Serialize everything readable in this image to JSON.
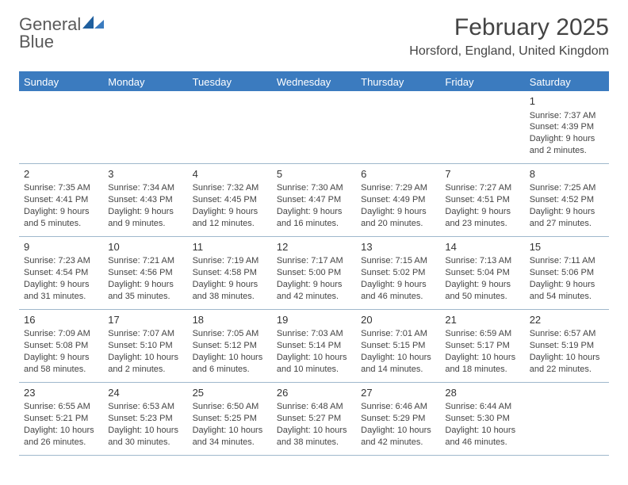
{
  "logo": {
    "word1": "General",
    "word2": "Blue"
  },
  "title": "February 2025",
  "location": "Horsford, England, United Kingdom",
  "colors": {
    "header_bg": "#3b7bbf",
    "divider": "#9fb8cc",
    "text": "#444444",
    "logo_gray": "#5a5a5a",
    "logo_blue": "#3b7bbf",
    "background": "#ffffff"
  },
  "day_headers": [
    "Sunday",
    "Monday",
    "Tuesday",
    "Wednesday",
    "Thursday",
    "Friday",
    "Saturday"
  ],
  "weeks": [
    [
      null,
      null,
      null,
      null,
      null,
      null,
      {
        "n": "1",
        "sr": "Sunrise: 7:37 AM",
        "ss": "Sunset: 4:39 PM",
        "dl": "Daylight: 9 hours and 2 minutes."
      }
    ],
    [
      {
        "n": "2",
        "sr": "Sunrise: 7:35 AM",
        "ss": "Sunset: 4:41 PM",
        "dl": "Daylight: 9 hours and 5 minutes."
      },
      {
        "n": "3",
        "sr": "Sunrise: 7:34 AM",
        "ss": "Sunset: 4:43 PM",
        "dl": "Daylight: 9 hours and 9 minutes."
      },
      {
        "n": "4",
        "sr": "Sunrise: 7:32 AM",
        "ss": "Sunset: 4:45 PM",
        "dl": "Daylight: 9 hours and 12 minutes."
      },
      {
        "n": "5",
        "sr": "Sunrise: 7:30 AM",
        "ss": "Sunset: 4:47 PM",
        "dl": "Daylight: 9 hours and 16 minutes."
      },
      {
        "n": "6",
        "sr": "Sunrise: 7:29 AM",
        "ss": "Sunset: 4:49 PM",
        "dl": "Daylight: 9 hours and 20 minutes."
      },
      {
        "n": "7",
        "sr": "Sunrise: 7:27 AM",
        "ss": "Sunset: 4:51 PM",
        "dl": "Daylight: 9 hours and 23 minutes."
      },
      {
        "n": "8",
        "sr": "Sunrise: 7:25 AM",
        "ss": "Sunset: 4:52 PM",
        "dl": "Daylight: 9 hours and 27 minutes."
      }
    ],
    [
      {
        "n": "9",
        "sr": "Sunrise: 7:23 AM",
        "ss": "Sunset: 4:54 PM",
        "dl": "Daylight: 9 hours and 31 minutes."
      },
      {
        "n": "10",
        "sr": "Sunrise: 7:21 AM",
        "ss": "Sunset: 4:56 PM",
        "dl": "Daylight: 9 hours and 35 minutes."
      },
      {
        "n": "11",
        "sr": "Sunrise: 7:19 AM",
        "ss": "Sunset: 4:58 PM",
        "dl": "Daylight: 9 hours and 38 minutes."
      },
      {
        "n": "12",
        "sr": "Sunrise: 7:17 AM",
        "ss": "Sunset: 5:00 PM",
        "dl": "Daylight: 9 hours and 42 minutes."
      },
      {
        "n": "13",
        "sr": "Sunrise: 7:15 AM",
        "ss": "Sunset: 5:02 PM",
        "dl": "Daylight: 9 hours and 46 minutes."
      },
      {
        "n": "14",
        "sr": "Sunrise: 7:13 AM",
        "ss": "Sunset: 5:04 PM",
        "dl": "Daylight: 9 hours and 50 minutes."
      },
      {
        "n": "15",
        "sr": "Sunrise: 7:11 AM",
        "ss": "Sunset: 5:06 PM",
        "dl": "Daylight: 9 hours and 54 minutes."
      }
    ],
    [
      {
        "n": "16",
        "sr": "Sunrise: 7:09 AM",
        "ss": "Sunset: 5:08 PM",
        "dl": "Daylight: 9 hours and 58 minutes."
      },
      {
        "n": "17",
        "sr": "Sunrise: 7:07 AM",
        "ss": "Sunset: 5:10 PM",
        "dl": "Daylight: 10 hours and 2 minutes."
      },
      {
        "n": "18",
        "sr": "Sunrise: 7:05 AM",
        "ss": "Sunset: 5:12 PM",
        "dl": "Daylight: 10 hours and 6 minutes."
      },
      {
        "n": "19",
        "sr": "Sunrise: 7:03 AM",
        "ss": "Sunset: 5:14 PM",
        "dl": "Daylight: 10 hours and 10 minutes."
      },
      {
        "n": "20",
        "sr": "Sunrise: 7:01 AM",
        "ss": "Sunset: 5:15 PM",
        "dl": "Daylight: 10 hours and 14 minutes."
      },
      {
        "n": "21",
        "sr": "Sunrise: 6:59 AM",
        "ss": "Sunset: 5:17 PM",
        "dl": "Daylight: 10 hours and 18 minutes."
      },
      {
        "n": "22",
        "sr": "Sunrise: 6:57 AM",
        "ss": "Sunset: 5:19 PM",
        "dl": "Daylight: 10 hours and 22 minutes."
      }
    ],
    [
      {
        "n": "23",
        "sr": "Sunrise: 6:55 AM",
        "ss": "Sunset: 5:21 PM",
        "dl": "Daylight: 10 hours and 26 minutes."
      },
      {
        "n": "24",
        "sr": "Sunrise: 6:53 AM",
        "ss": "Sunset: 5:23 PM",
        "dl": "Daylight: 10 hours and 30 minutes."
      },
      {
        "n": "25",
        "sr": "Sunrise: 6:50 AM",
        "ss": "Sunset: 5:25 PM",
        "dl": "Daylight: 10 hours and 34 minutes."
      },
      {
        "n": "26",
        "sr": "Sunrise: 6:48 AM",
        "ss": "Sunset: 5:27 PM",
        "dl": "Daylight: 10 hours and 38 minutes."
      },
      {
        "n": "27",
        "sr": "Sunrise: 6:46 AM",
        "ss": "Sunset: 5:29 PM",
        "dl": "Daylight: 10 hours and 42 minutes."
      },
      {
        "n": "28",
        "sr": "Sunrise: 6:44 AM",
        "ss": "Sunset: 5:30 PM",
        "dl": "Daylight: 10 hours and 46 minutes."
      },
      null
    ]
  ]
}
